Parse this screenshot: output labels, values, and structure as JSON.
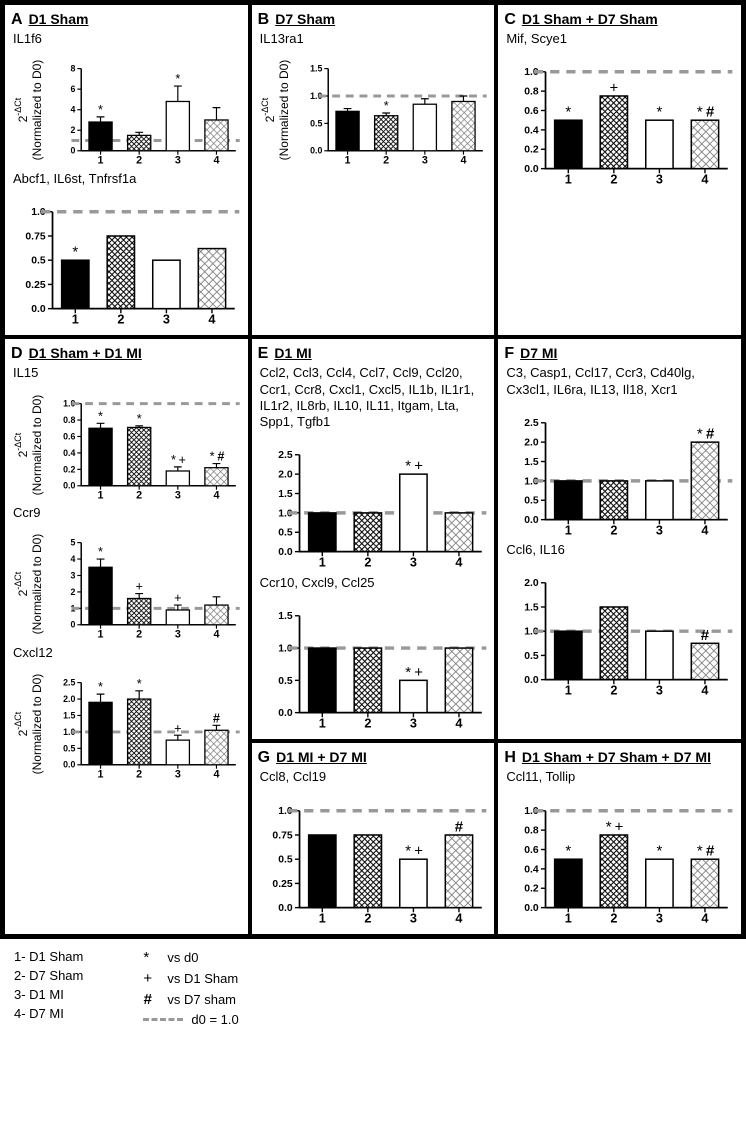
{
  "figure_width": 746,
  "figure_height": 1128,
  "font_family": "Arial",
  "colors": {
    "border": "#000000",
    "background": "#ffffff",
    "bar_fill_solid": "#000000",
    "bar_fill_white": "#ffffff",
    "bar_stroke": "#000000",
    "hatch_color": "#000000",
    "dashed_ref": "#999999",
    "text": "#000000"
  },
  "hatch_patterns": {
    "1": "solid_black",
    "2": "crosshatch_dense",
    "3": "white_open",
    "4": "crosshatch_light"
  },
  "axis_style": {
    "xlabel_fontsize": 12,
    "ylabel_fontsize": 12,
    "tick_fontsize": 11,
    "tick_fontweight": "bold",
    "bar_width_ratio": 0.6,
    "error_cap_width": 6,
    "dashed_ref_value": 1.0,
    "dashed_ref_width": 3
  },
  "sig_symbols": {
    "star": "*",
    "plus": "+",
    "hash": "#"
  },
  "legend": {
    "groups": [
      {
        "key": "1",
        "label": "1- D1 Sham"
      },
      {
        "key": "2",
        "label": "2- D7 Sham"
      },
      {
        "key": "3",
        "label": "3- D1 MI"
      },
      {
        "key": "4",
        "label": "4- D7 MI"
      }
    ],
    "symbols": [
      {
        "symbol": "*",
        "meaning": "vs d0"
      },
      {
        "symbol": "+",
        "meaning": "vs D1 Sham"
      },
      {
        "symbol": "#",
        "meaning": "vs D7 sham",
        "bold": true
      },
      {
        "symbol": "dash",
        "meaning": "d0 = 1.0"
      }
    ]
  },
  "panels": {
    "A": {
      "row": 1,
      "col": 1,
      "title": "D1 Sham",
      "ylabel": "2^-ΔCt\n(Normalized to D0)",
      "subcharts": [
        {
          "genes": "IL1f6",
          "categories": [
            "1",
            "2",
            "3",
            "4"
          ],
          "ylim": [
            0,
            8
          ],
          "yticks": [
            0,
            2,
            4,
            6,
            8
          ],
          "dashed_ref": 1.0,
          "bars": [
            {
              "h": 2.8,
              "err": 0.5,
              "sig": [
                "*"
              ]
            },
            {
              "h": 1.5,
              "err": 0.3,
              "sig": []
            },
            {
              "h": 4.8,
              "err": 1.5,
              "sig": [
                "*"
              ]
            },
            {
              "h": 3.0,
              "err": 1.2,
              "sig": []
            }
          ]
        },
        {
          "genes": "Abcf1, IL6st, Tnfrsf1a",
          "categories": [
            "1",
            "2",
            "3",
            "4"
          ],
          "ylim": [
            0,
            1
          ],
          "yticks": [
            0,
            0.25,
            0.5,
            0.75,
            1
          ],
          "dashed_ref": 1.0,
          "bars": [
            {
              "h": 0.5,
              "err": 0,
              "sig": [
                "*"
              ]
            },
            {
              "h": 0.75,
              "err": 0,
              "sig": []
            },
            {
              "h": 0.5,
              "err": 0,
              "sig": []
            },
            {
              "h": 0.62,
              "err": 0,
              "sig": []
            }
          ]
        }
      ]
    },
    "B": {
      "row": 1,
      "col": 2,
      "title": "D7 Sham",
      "ylabel": "2^-ΔCt\n(Normalized to D0)",
      "subcharts": [
        {
          "genes": "IL13ra1",
          "categories": [
            "1",
            "2",
            "3",
            "4"
          ],
          "ylim": [
            0,
            1.5
          ],
          "yticks": [
            0,
            0.5,
            1.0,
            1.5
          ],
          "dashed_ref": 1.0,
          "bars": [
            {
              "h": 0.72,
              "err": 0.05,
              "sig": []
            },
            {
              "h": 0.64,
              "err": 0.05,
              "sig": [
                "*"
              ]
            },
            {
              "h": 0.85,
              "err": 0.1,
              "sig": []
            },
            {
              "h": 0.9,
              "err": 0.1,
              "sig": []
            }
          ]
        }
      ]
    },
    "C": {
      "row": 1,
      "col": 3,
      "title": "D1 Sham + D7 Sham",
      "subcharts": [
        {
          "genes": "Mif, Scye1",
          "categories": [
            "1",
            "2",
            "3",
            "4"
          ],
          "ylim": [
            0,
            1.0
          ],
          "yticks": [
            0,
            0.2,
            0.4,
            0.6,
            0.8,
            1
          ],
          "dashed_ref": 1.0,
          "bars": [
            {
              "h": 0.5,
              "err": 0,
              "sig": [
                "*"
              ]
            },
            {
              "h": 0.75,
              "err": 0,
              "sig": [
                "+"
              ]
            },
            {
              "h": 0.5,
              "err": 0,
              "sig": [
                "*"
              ]
            },
            {
              "h": 0.5,
              "err": 0,
              "sig": [
                "*",
                "#"
              ]
            }
          ]
        }
      ]
    },
    "D": {
      "row": 2,
      "col": 1,
      "rowspan": 2,
      "title": "D1 Sham + D1 MI",
      "ylabel": "2^-ΔCt\n(Normalized to D0)",
      "subcharts": [
        {
          "genes": "IL15",
          "categories": [
            "1",
            "2",
            "3",
            "4"
          ],
          "ylim": [
            0,
            1.0
          ],
          "yticks": [
            0,
            0.2,
            0.4,
            0.6,
            0.8,
            1.0
          ],
          "dashed_ref": 1.0,
          "bars": [
            {
              "h": 0.7,
              "err": 0.06,
              "sig": [
                "*"
              ]
            },
            {
              "h": 0.71,
              "err": 0.02,
              "sig": [
                "*"
              ]
            },
            {
              "h": 0.18,
              "err": 0.05,
              "sig": [
                "*",
                "+"
              ]
            },
            {
              "h": 0.22,
              "err": 0.05,
              "sig": [
                "*",
                "#"
              ]
            }
          ]
        },
        {
          "genes": "Ccr9",
          "categories": [
            "1",
            "2",
            "3",
            "4"
          ],
          "ylim": [
            0,
            5
          ],
          "yticks": [
            0,
            1,
            2,
            3,
            4,
            5
          ],
          "dashed_ref": 1.0,
          "bars": [
            {
              "h": 3.5,
              "err": 0.5,
              "sig": [
                "*"
              ]
            },
            {
              "h": 1.6,
              "err": 0.3,
              "sig": [
                "+"
              ]
            },
            {
              "h": 0.9,
              "err": 0.3,
              "sig": [
                "+"
              ]
            },
            {
              "h": 1.2,
              "err": 0.5,
              "sig": []
            }
          ]
        },
        {
          "genes": "Cxcl12",
          "categories": [
            "1",
            "2",
            "3",
            "4"
          ],
          "ylim": [
            0,
            2.5
          ],
          "yticks": [
            0,
            0.5,
            1.0,
            1.5,
            2.0,
            2.5
          ],
          "dashed_ref": 1.0,
          "bars": [
            {
              "h": 1.9,
              "err": 0.25,
              "sig": [
                "*"
              ]
            },
            {
              "h": 2.0,
              "err": 0.25,
              "sig": [
                "*"
              ]
            },
            {
              "h": 0.75,
              "err": 0.15,
              "sig": [
                "+"
              ]
            },
            {
              "h": 1.05,
              "err": 0.15,
              "sig": [
                "#"
              ]
            }
          ]
        }
      ]
    },
    "E": {
      "row": 2,
      "col": 2,
      "title": "D1 MI",
      "subcharts": [
        {
          "genes": "Ccl2, Ccl3, Ccl4, Ccl7, Ccl9, Ccl20, Ccr1, Ccr8, Cxcl1, Cxcl5, IL1b, IL1r1, IL1r2,  IL8rb, IL10, IL11, Itgam, Lta, Spp1, Tgfb1",
          "categories": [
            "1",
            "2",
            "3",
            "4"
          ],
          "ylim": [
            0,
            2.5
          ],
          "yticks": [
            0,
            0.5,
            1.0,
            1.5,
            2.0,
            2.5
          ],
          "dashed_ref": 1.0,
          "bars": [
            {
              "h": 1.0,
              "err": 0,
              "sig": []
            },
            {
              "h": 1.0,
              "err": 0,
              "sig": []
            },
            {
              "h": 2.0,
              "err": 0,
              "sig": [
                "*",
                "+"
              ]
            },
            {
              "h": 1.0,
              "err": 0,
              "sig": []
            }
          ]
        },
        {
          "genes": "Ccr10, Cxcl9, Ccl25",
          "categories": [
            "1",
            "2",
            "3",
            "4"
          ],
          "ylim": [
            0,
            1.5
          ],
          "yticks": [
            0,
            0.5,
            1.0,
            1.5
          ],
          "dashed_ref": 1.0,
          "bars": [
            {
              "h": 1.0,
              "err": 0,
              "sig": []
            },
            {
              "h": 1.0,
              "err": 0,
              "sig": []
            },
            {
              "h": 0.5,
              "err": 0,
              "sig": [
                "*",
                "+"
              ]
            },
            {
              "h": 1.0,
              "err": 0,
              "sig": []
            }
          ]
        }
      ]
    },
    "F": {
      "row": 2,
      "col": 3,
      "title": "D7 MI",
      "subcharts": [
        {
          "genes": "C3, Casp1, Ccl17, Ccr3, Cd40lg, Cx3cl1, IL6ra, IL13, Il18, Xcr1",
          "categories": [
            "1",
            "2",
            "3",
            "4"
          ],
          "ylim": [
            0,
            2.5
          ],
          "yticks": [
            0,
            0.5,
            1.0,
            1.5,
            2.0,
            2.5
          ],
          "dashed_ref": 1.0,
          "bars": [
            {
              "h": 1.0,
              "err": 0,
              "sig": []
            },
            {
              "h": 1.0,
              "err": 0,
              "sig": []
            },
            {
              "h": 1.0,
              "err": 0,
              "sig": []
            },
            {
              "h": 2.0,
              "err": 0,
              "sig": [
                "*",
                "#"
              ]
            }
          ]
        },
        {
          "genes": "Ccl6, IL16",
          "categories": [
            "1",
            "2",
            "3",
            "4"
          ],
          "ylim": [
            0,
            2.0
          ],
          "yticks": [
            0,
            0.5,
            1.0,
            1.5,
            2.0
          ],
          "dashed_ref": 1.0,
          "bars": [
            {
              "h": 1.0,
              "err": 0,
              "sig": []
            },
            {
              "h": 1.5,
              "err": 0,
              "sig": []
            },
            {
              "h": 1.0,
              "err": 0,
              "sig": []
            },
            {
              "h": 0.75,
              "err": 0,
              "sig": [
                "#"
              ]
            }
          ]
        }
      ]
    },
    "G": {
      "row": 3,
      "col": 2,
      "title": "D1 MI + D7 MI",
      "subcharts": [
        {
          "genes": "Ccl8, Ccl19",
          "categories": [
            "1",
            "2",
            "3",
            "4"
          ],
          "ylim": [
            0,
            1.0
          ],
          "yticks": [
            0,
            0.25,
            0.5,
            0.75,
            1
          ],
          "dashed_ref": 1.0,
          "bars": [
            {
              "h": 0.75,
              "err": 0,
              "sig": []
            },
            {
              "h": 0.75,
              "err": 0,
              "sig": []
            },
            {
              "h": 0.5,
              "err": 0,
              "sig": [
                "*",
                "+"
              ]
            },
            {
              "h": 0.75,
              "err": 0,
              "sig": [
                "#"
              ]
            }
          ]
        }
      ]
    },
    "H": {
      "row": 3,
      "col": 3,
      "title": "D1 Sham + D7 Sham + D7 MI",
      "subcharts": [
        {
          "genes": "Ccl11, Tollip",
          "categories": [
            "1",
            "2",
            "3",
            "4"
          ],
          "ylim": [
            0,
            1.0
          ],
          "yticks": [
            0,
            0.2,
            0.4,
            0.6,
            0.8,
            1
          ],
          "dashed_ref": 1.0,
          "bars": [
            {
              "h": 0.5,
              "err": 0,
              "sig": [
                "*"
              ]
            },
            {
              "h": 0.75,
              "err": 0,
              "sig": [
                "*",
                "+"
              ]
            },
            {
              "h": 0.5,
              "err": 0,
              "sig": [
                "*"
              ]
            },
            {
              "h": 0.5,
              "err": 0,
              "sig": [
                "*",
                "#"
              ]
            }
          ]
        }
      ]
    }
  }
}
